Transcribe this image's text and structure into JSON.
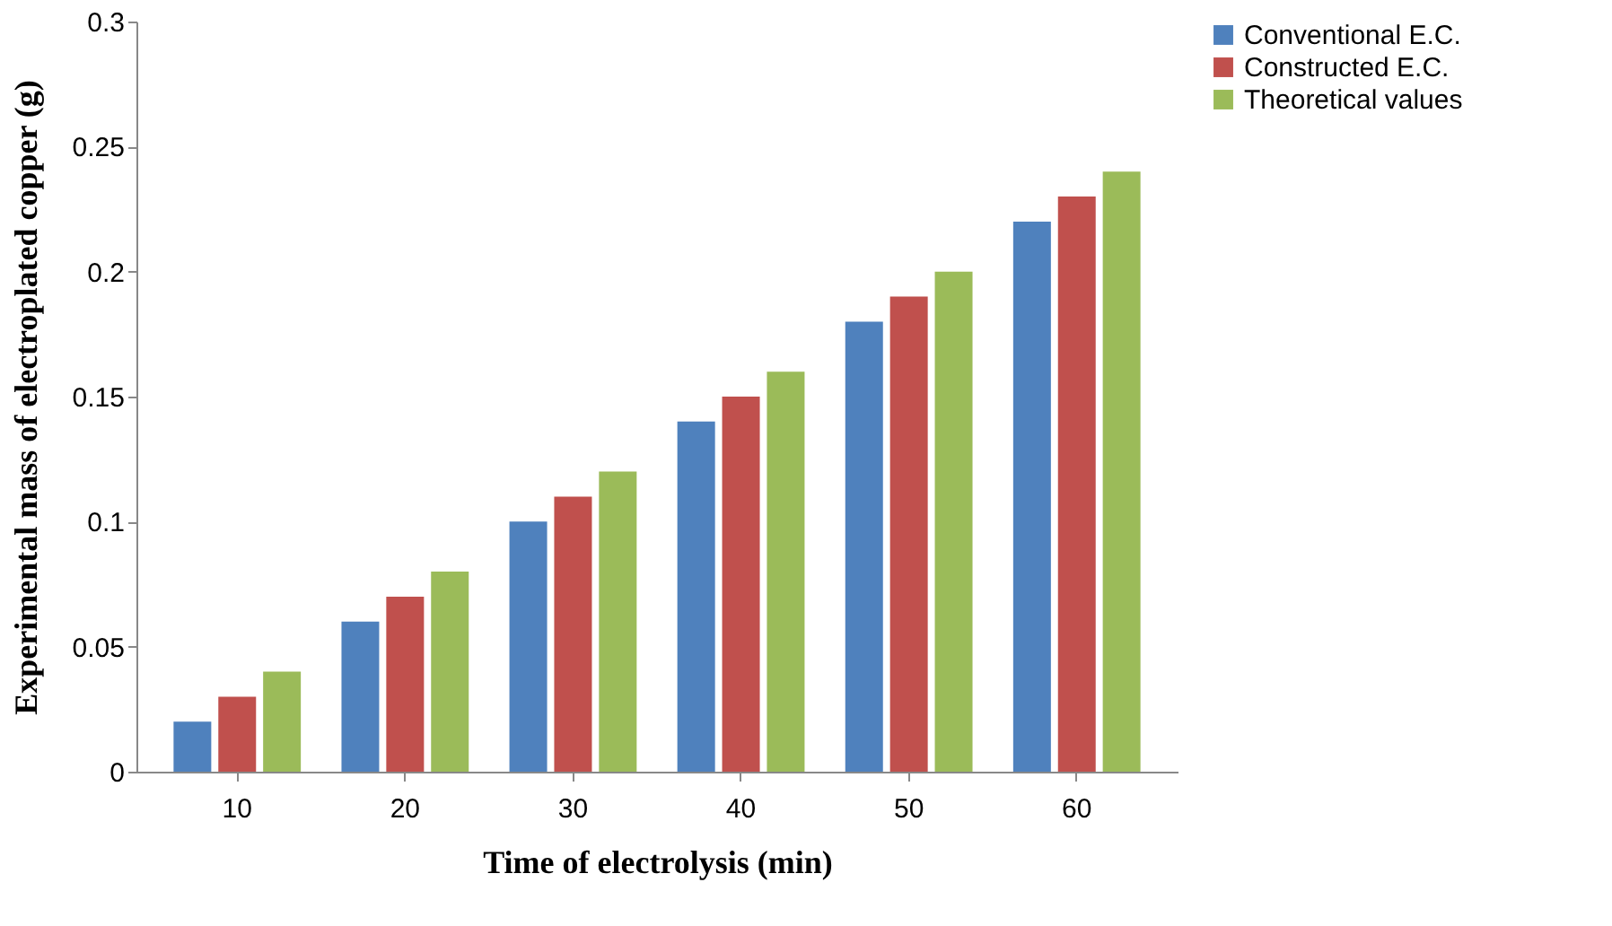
{
  "chart_data": {
    "type": "bar",
    "xlabel": "Time of electrolysis (min)",
    "ylabel": "Experimental mass of electroplated copper (g)",
    "categories": [
      "10",
      "20",
      "30",
      "40",
      "50",
      "60"
    ],
    "series": [
      {
        "name": "Conventional E.C.",
        "color": "#4f81bd",
        "values": [
          0.02,
          0.06,
          0.1,
          0.14,
          0.18,
          0.22
        ]
      },
      {
        "name": "Constructed E.C.",
        "color": "#c0504d",
        "values": [
          0.03,
          0.07,
          0.11,
          0.15,
          0.19,
          0.23
        ]
      },
      {
        "name": "Theoretical values",
        "color": "#9bbb59",
        "values": [
          0.04,
          0.08,
          0.12,
          0.16,
          0.2,
          0.24
        ]
      }
    ],
    "ylim": [
      0,
      0.3
    ],
    "yticks": [
      0,
      0.05,
      0.1,
      0.15,
      0.2,
      0.25,
      0.3
    ],
    "grid": false,
    "legend": "right"
  }
}
